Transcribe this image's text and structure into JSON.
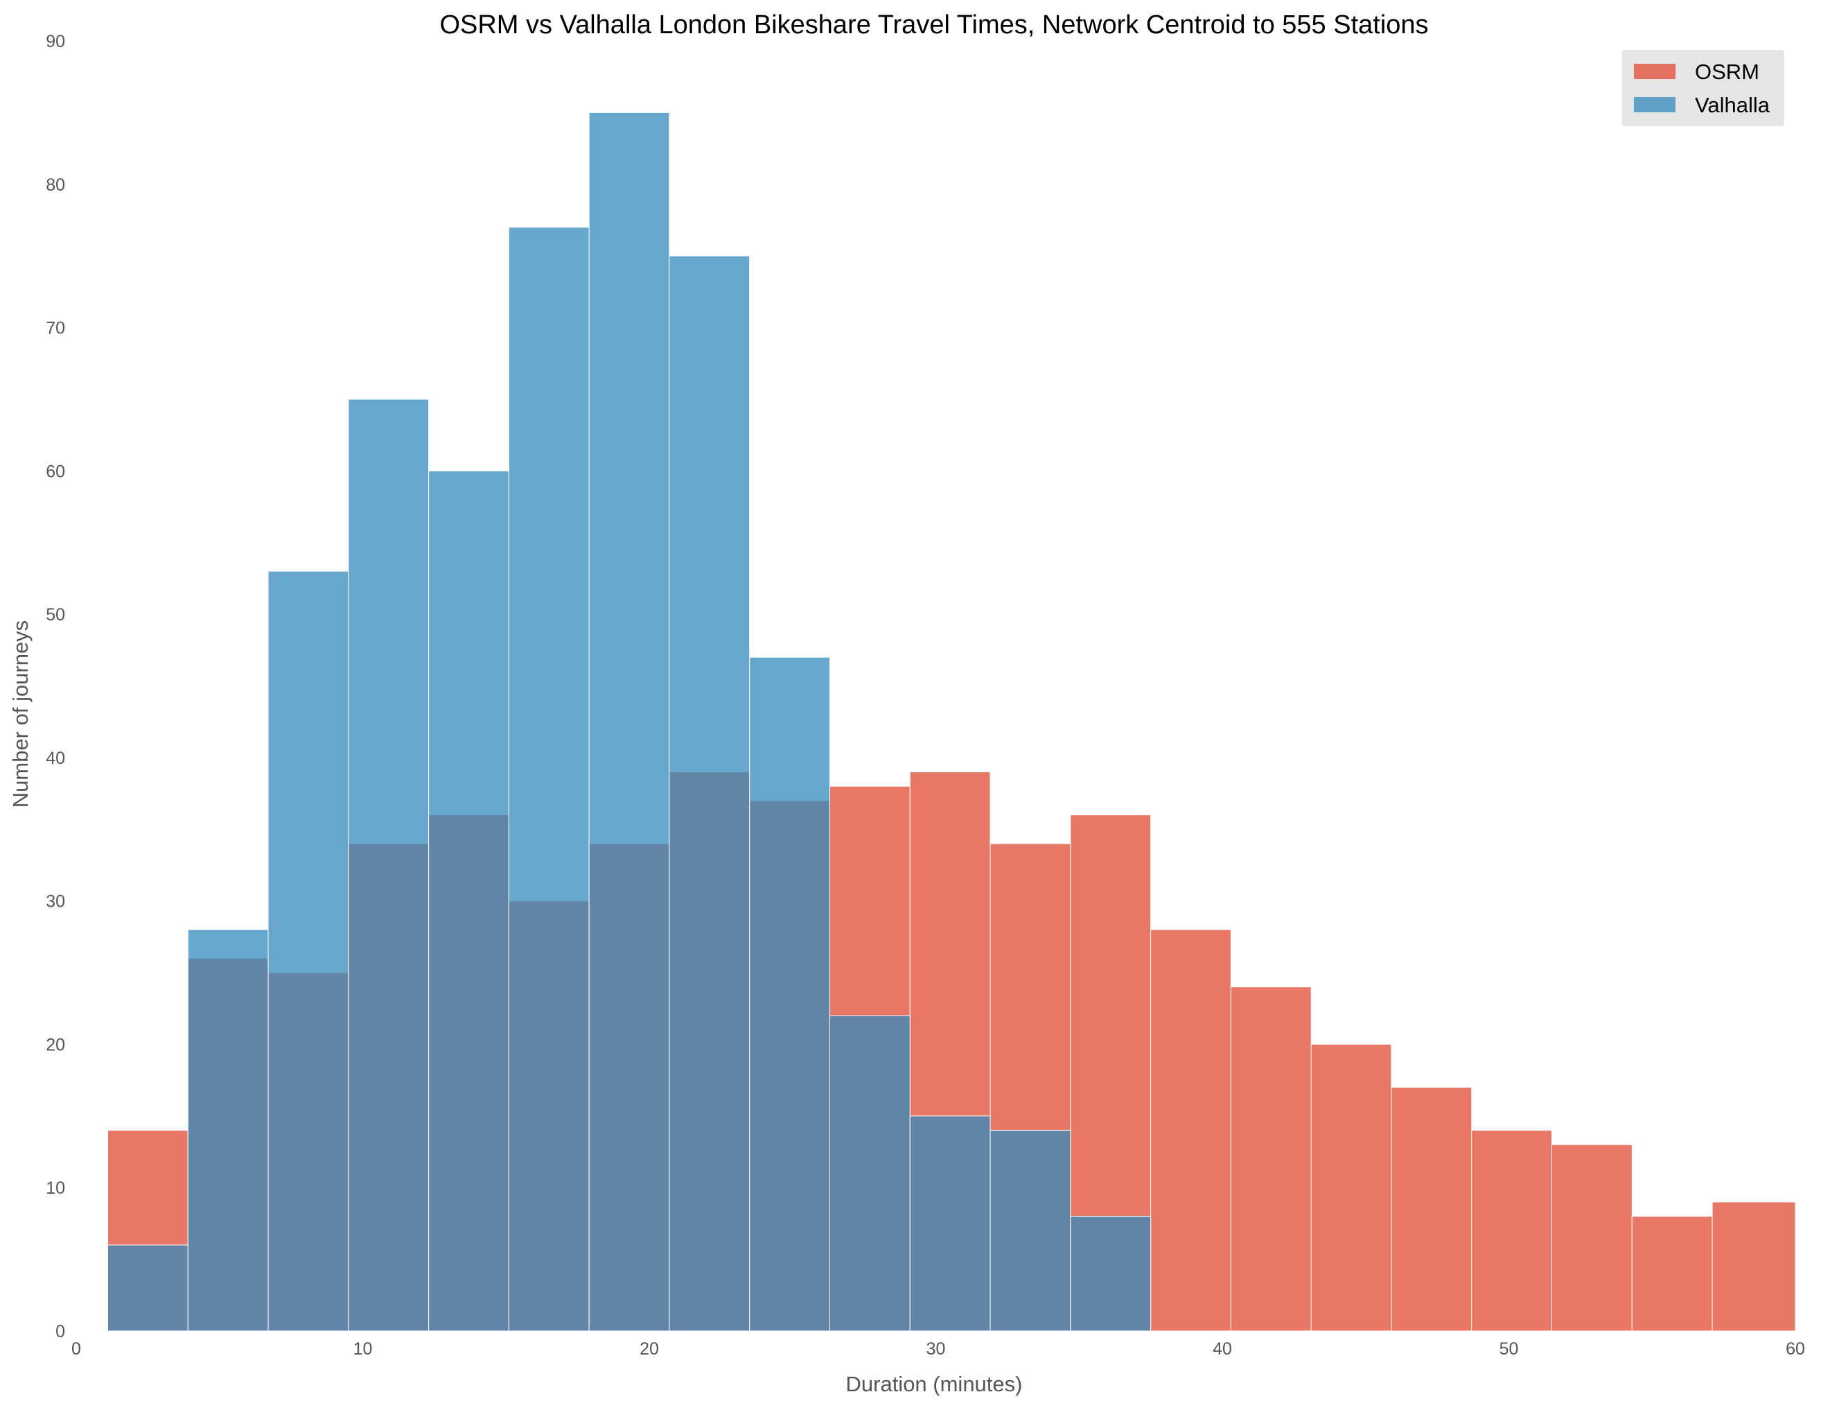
{
  "colors": {
    "osrm": "#E24A33",
    "valhalla": "#348ABD",
    "bar_edge": "#ffffff",
    "legend_bg": "#E5E5E5",
    "tick_text": "#555555"
  },
  "chart_data": {
    "type": "bar",
    "subtype": "overlapping-histogram",
    "title": "OSRM vs Valhalla London Bikeshare Travel Times, Network Centroid to 555 Stations",
    "xlabel": "Duration (minutes)",
    "ylabel": "Number of journeys",
    "xlim": [
      0,
      60
    ],
    "ylim": [
      0,
      90
    ],
    "xticks": [
      0,
      10,
      20,
      30,
      40,
      50,
      60
    ],
    "yticks": [
      0,
      10,
      20,
      30,
      40,
      50,
      60,
      70,
      80,
      90
    ],
    "grid": false,
    "legend_position": "top-right",
    "bin_edges": [
      1.1,
      3.9,
      6.7,
      9.5,
      12.3,
      15.1,
      17.9,
      20.7,
      23.5,
      26.3,
      29.1,
      31.9,
      34.7,
      37.5,
      40.3,
      43.1,
      45.9,
      48.7,
      51.5,
      54.3,
      57.1,
      60.0
    ],
    "series": [
      {
        "name": "OSRM",
        "color": "#E24A33",
        "values": [
          14,
          26,
          25,
          34,
          36,
          30,
          34,
          39,
          37,
          38,
          39,
          34,
          36,
          28,
          24,
          20,
          17,
          14,
          13,
          8,
          9
        ]
      },
      {
        "name": "Valhalla",
        "color": "#348ABD",
        "values": [
          6,
          28,
          53,
          65,
          60,
          77,
          85,
          75,
          47,
          22,
          15,
          14,
          8,
          0,
          0,
          0,
          0,
          0,
          0,
          0,
          0
        ]
      }
    ]
  }
}
